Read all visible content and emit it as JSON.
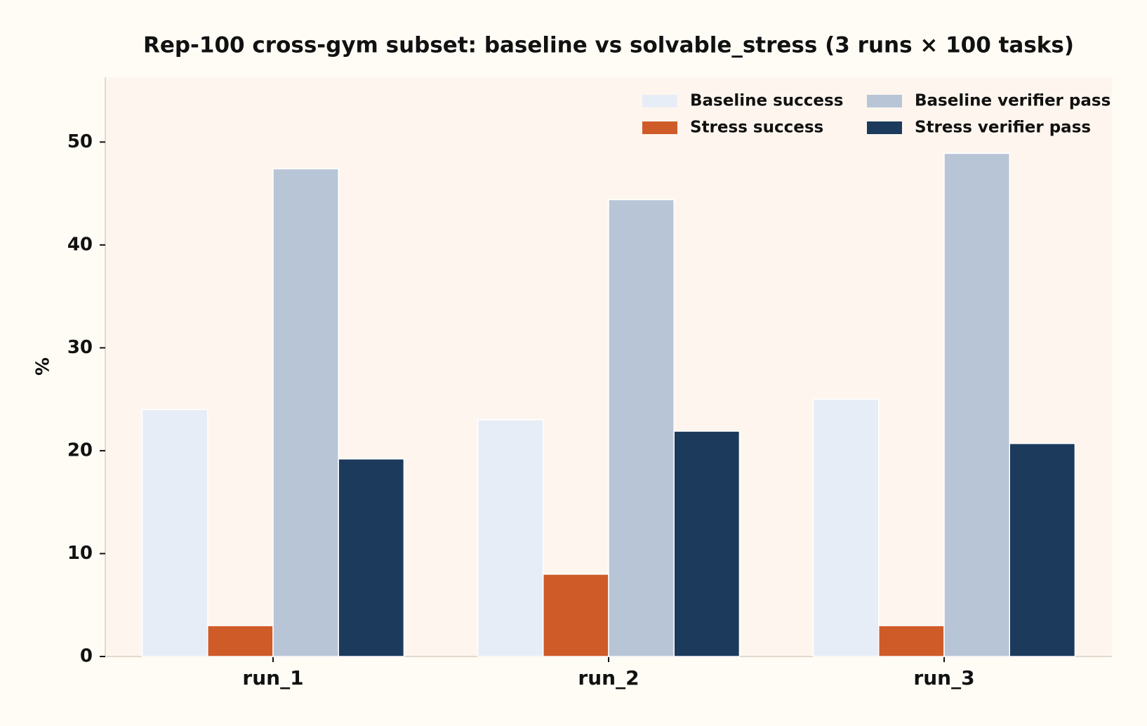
{
  "chart_data": {
    "type": "bar",
    "title": "Rep-100 cross-gym subset: baseline vs solvable_stress (3 runs × 100 tasks)",
    "y_label": "%",
    "categories": [
      "run_1",
      "run_2",
      "run_3"
    ],
    "series": [
      {
        "name": "Baseline success",
        "color": "#e7edf6",
        "values": [
          24,
          23,
          25
        ]
      },
      {
        "name": "Stress success",
        "color": "#cf5b29",
        "values": [
          3,
          8,
          3
        ]
      },
      {
        "name": "Baseline verifier pass",
        "color": "#b8c5d6",
        "values": [
          47.4,
          44.4,
          48.9
        ]
      },
      {
        "name": "Stress verifier pass",
        "color": "#1b3a5c",
        "values": [
          19.2,
          21.9,
          20.7
        ]
      }
    ],
    "ylim": [
      0,
      56.3
    ],
    "yticks": [
      0,
      10,
      20,
      30,
      40,
      50
    ],
    "legend": "upper right"
  }
}
